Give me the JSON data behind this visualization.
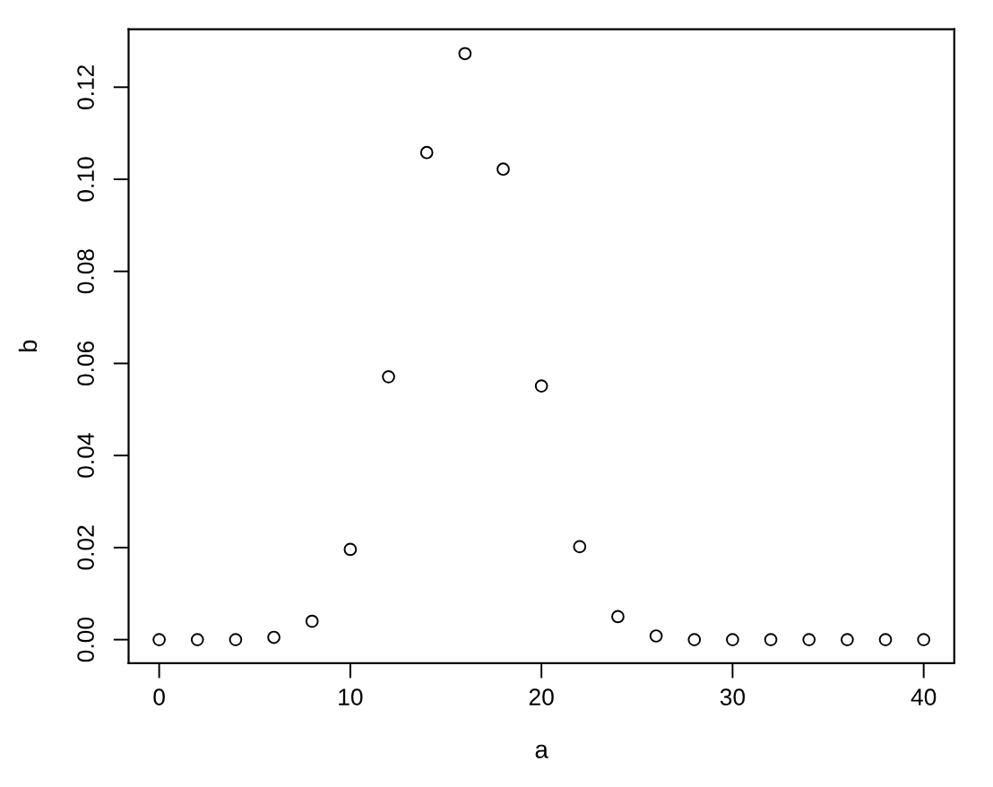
{
  "chart_data": {
    "type": "scatter",
    "xlabel": "a",
    "ylabel": "b",
    "x": [
      0,
      2,
      4,
      6,
      8,
      10,
      12,
      14,
      16,
      18,
      20,
      22,
      24,
      26,
      28,
      30,
      32,
      34,
      36,
      38,
      40
    ],
    "series": [
      {
        "color": "#000000",
        "values": [
          0,
          0,
          0,
          0.0005,
          0.004,
          0.0196,
          0.0571,
          0.1058,
          0.1273,
          0.1022,
          0.0551,
          0.0202,
          0.005,
          0.0008,
          0,
          0,
          0,
          0,
          0,
          0,
          0
        ]
      }
    ],
    "xlim": [
      -1.6,
      41.6
    ],
    "xticks": [
      0,
      10,
      20,
      30,
      40
    ],
    "ylim": [
      -0.0051,
      0.1326
    ],
    "yticks": [
      {
        "value": 0,
        "label": "0.00"
      },
      {
        "value": 0.02,
        "label": "0.02"
      },
      {
        "value": 0.04,
        "label": "0.04"
      },
      {
        "value": 0.06,
        "label": "0.06"
      },
      {
        "value": 0.08,
        "label": "0.08"
      },
      {
        "value": 0.1,
        "label": "0.10"
      },
      {
        "value": 0.12,
        "label": "0.12"
      }
    ],
    "grid": false,
    "marker": "circle"
  }
}
